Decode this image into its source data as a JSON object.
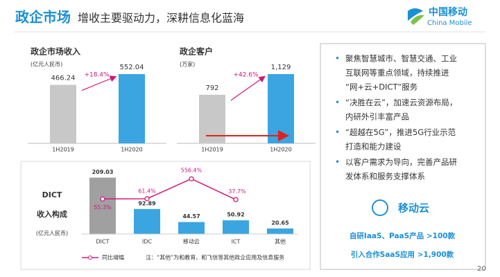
{
  "header": {
    "title": "政企市场",
    "subtitle": "增收主要驱动力，深耕信息化蓝海"
  },
  "logo": {
    "cn": "中国移动",
    "en": "China Mobile"
  },
  "chart_data": [
    {
      "type": "bar",
      "title": "政企市场收入",
      "unit": "(亿元人民币)",
      "categories": [
        "1H2019",
        "1H2020"
      ],
      "values": [
        466.24,
        552.04
      ],
      "colors": [
        "#c8c8c8",
        "#3aa5e0"
      ],
      "annotation": "+18.4%"
    },
    {
      "type": "bar",
      "title": "政企客户",
      "unit": "(万家)",
      "categories": [
        "1H2019",
        "1H2020"
      ],
      "values": [
        792,
        1129
      ],
      "value_labels": [
        "792",
        "1,129"
      ],
      "colors": [
        "#c8c8c8",
        "#3aa5e0"
      ],
      "annotation": "+42.6%"
    },
    {
      "type": "bar_line",
      "title": [
        "DICT",
        "收入构成"
      ],
      "unit": "(亿元人民币)",
      "categories": [
        "DICT",
        "IDC",
        "移动云",
        "ICT",
        "其他"
      ],
      "series": [
        {
          "name": "收入",
          "color": "#3aa5e0",
          "values": [
            209.03,
            92.89,
            44.57,
            50.92,
            20.65
          ],
          "colors": [
            "#a0a0a0",
            "#3aa5e0",
            "#3aa5e0",
            "#3aa5e0",
            "#3aa5e0"
          ]
        },
        {
          "name": "同比增幅",
          "color": "#d0177a",
          "values": [
            55.3,
            61.4,
            556.4,
            37.7,
            null
          ],
          "value_labels": [
            "55.3%",
            "61.4%",
            "556.4%",
            "37.7%",
            null
          ]
        }
      ],
      "note": "注：“其他”为和教育、和飞信等其他政企应用及信息服务"
    }
  ],
  "panel": {
    "bullets": [
      [
        "聚焦智慧城市、智慧交通、工业",
        "互联网等重点领域，持续推进",
        "“网+云+DICT”服务"
      ],
      [
        "“决胜在云”，加速云资源布局，",
        "内研外引丰富产品"
      ],
      [
        "“超越在5G”，推进5G行业示范",
        "打造和能力建设"
      ],
      [
        "以客户需求为导向，完善产品研",
        "发体系和服务支撑体系"
      ]
    ],
    "logo_text": "移动云",
    "highlights": [
      "自研IaaS、PaaS产品 >100款",
      "引入合作SaaS应用 >1,900款"
    ]
  },
  "page_number": "20"
}
